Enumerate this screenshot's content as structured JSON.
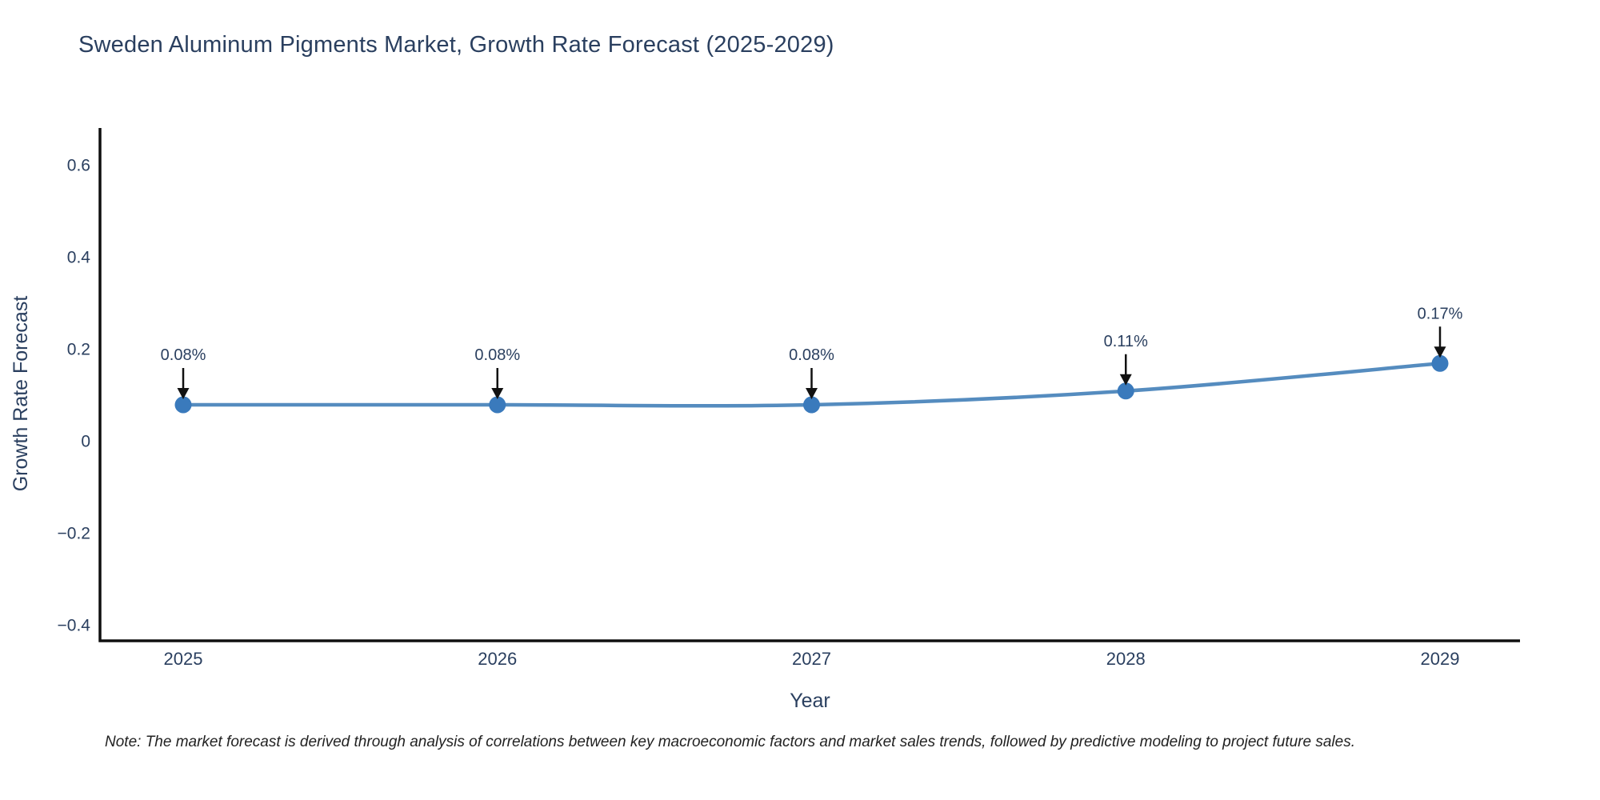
{
  "page": {
    "footnote": "Note: The market forecast is derived through analysis of correlations between key macroeconomic factors and market sales trends, followed by predictive modeling to project future sales."
  },
  "chart_data": {
    "type": "line",
    "title": "Sweden Aluminum Pigments Market, Growth Rate Forecast (2025-2029)",
    "xlabel": "Year",
    "ylabel": "Growth Rate Forecast",
    "x": [
      "2025",
      "2026",
      "2027",
      "2028",
      "2029"
    ],
    "series": [
      {
        "name": "Growth Rate Forecast",
        "values": [
          0.08,
          0.08,
          0.08,
          0.11,
          0.17
        ],
        "point_labels": [
          "0.08%",
          "0.08%",
          "0.08%",
          "0.11%",
          "0.17%"
        ]
      }
    ],
    "annotations": [
      {
        "x": "2025",
        "y": 0.08,
        "text": "0.08%"
      },
      {
        "x": "2026",
        "y": 0.08,
        "text": "0.08%"
      },
      {
        "x": "2027",
        "y": 0.08,
        "text": "0.08%"
      },
      {
        "x": "2028",
        "y": 0.11,
        "text": "0.11%"
      },
      {
        "x": "2029",
        "y": 0.17,
        "text": "0.17%"
      }
    ],
    "yticks": {
      "values": [
        0.6,
        0.4,
        0.2,
        0,
        -0.2,
        -0.4
      ],
      "labels": [
        "0.6",
        "0.4",
        "0.2",
        "0",
        "−0.2",
        "−0.4"
      ]
    },
    "ylim": [
      -0.435,
      0.68
    ],
    "grid": false,
    "legend": "none",
    "line_shape": "spline",
    "colors": {
      "line": "#4380b8",
      "marker": "#3a7abc",
      "axis": "#101010",
      "arrow": "#111111",
      "tick_text": "#2a3f5f",
      "annotation_text": "#2a3f5f",
      "title_text": "#2a3f5f",
      "background": "#ffffff"
    }
  }
}
